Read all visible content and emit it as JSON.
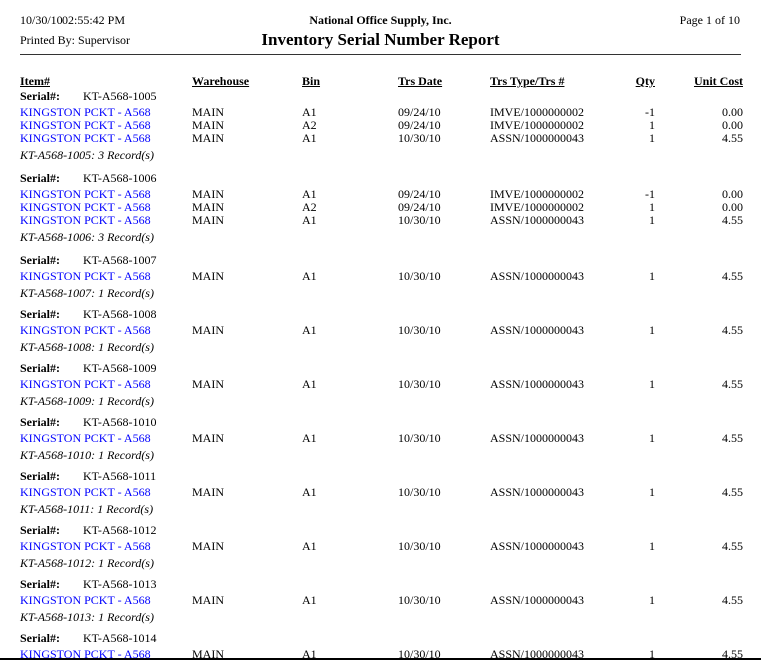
{
  "header": {
    "date": "10/30/10",
    "time": "02:55:42 PM",
    "company": "National Office Supply, Inc.",
    "page": "Page 1 of 10",
    "printed_by_label": "Printed By:",
    "printed_by_value": "Supervisor",
    "title": "Inventory Serial Number Report"
  },
  "columns": [
    "Item#",
    "Warehouse",
    "Bin",
    "Trs Date",
    "Trs Type/Trs #",
    "Qty",
    "Unit Cost"
  ],
  "labels": {
    "serial": "Serial#:"
  },
  "colors": {
    "link_blue": "#0000ff",
    "text": "#000000"
  },
  "groups": [
    {
      "serial": "KT-A568-1005",
      "rows": [
        {
          "item": "KINGSTON PCKT - A568",
          "warehouse": "MAIN",
          "bin": "A1",
          "trs_date": "09/24/10",
          "trs_type": "IMVE/1000000002",
          "qty": "-1",
          "unit_cost": "0.00"
        },
        {
          "item": "KINGSTON PCKT - A568",
          "warehouse": "MAIN",
          "bin": "A2",
          "trs_date": "09/24/10",
          "trs_type": "IMVE/1000000002",
          "qty": "1",
          "unit_cost": "0.00"
        },
        {
          "item": "KINGSTON PCKT - A568",
          "warehouse": "MAIN",
          "bin": "A1",
          "trs_date": "10/30/10",
          "trs_type": "ASSN/1000000043",
          "qty": "1",
          "unit_cost": "4.55"
        }
      ],
      "footer": "KT-A568-1005: 3 Record(s)"
    },
    {
      "serial": "KT-A568-1006",
      "rows": [
        {
          "item": "KINGSTON PCKT - A568",
          "warehouse": "MAIN",
          "bin": "A1",
          "trs_date": "09/24/10",
          "trs_type": "IMVE/1000000002",
          "qty": "-1",
          "unit_cost": "0.00"
        },
        {
          "item": "KINGSTON PCKT - A568",
          "warehouse": "MAIN",
          "bin": "A2",
          "trs_date": "09/24/10",
          "trs_type": "IMVE/1000000002",
          "qty": "1",
          "unit_cost": "0.00"
        },
        {
          "item": "KINGSTON PCKT - A568",
          "warehouse": "MAIN",
          "bin": "A1",
          "trs_date": "10/30/10",
          "trs_type": "ASSN/1000000043",
          "qty": "1",
          "unit_cost": "4.55"
        }
      ],
      "footer": "KT-A568-1006: 3 Record(s)"
    },
    {
      "serial": "KT-A568-1007",
      "rows": [
        {
          "item": "KINGSTON PCKT - A568",
          "warehouse": "MAIN",
          "bin": "A1",
          "trs_date": "10/30/10",
          "trs_type": "ASSN/1000000043",
          "qty": "1",
          "unit_cost": "4.55"
        }
      ],
      "footer": "KT-A568-1007: 1 Record(s)"
    },
    {
      "serial": "KT-A568-1008",
      "rows": [
        {
          "item": "KINGSTON PCKT - A568",
          "warehouse": "MAIN",
          "bin": "A1",
          "trs_date": "10/30/10",
          "trs_type": "ASSN/1000000043",
          "qty": "1",
          "unit_cost": "4.55"
        }
      ],
      "footer": "KT-A568-1008: 1 Record(s)"
    },
    {
      "serial": "KT-A568-1009",
      "rows": [
        {
          "item": "KINGSTON PCKT - A568",
          "warehouse": "MAIN",
          "bin": "A1",
          "trs_date": "10/30/10",
          "trs_type": "ASSN/1000000043",
          "qty": "1",
          "unit_cost": "4.55"
        }
      ],
      "footer": "KT-A568-1009: 1 Record(s)"
    },
    {
      "serial": "KT-A568-1010",
      "rows": [
        {
          "item": "KINGSTON PCKT - A568",
          "warehouse": "MAIN",
          "bin": "A1",
          "trs_date": "10/30/10",
          "trs_type": "ASSN/1000000043",
          "qty": "1",
          "unit_cost": "4.55"
        }
      ],
      "footer": "KT-A568-1010: 1 Record(s)"
    },
    {
      "serial": "KT-A568-1011",
      "rows": [
        {
          "item": "KINGSTON PCKT - A568",
          "warehouse": "MAIN",
          "bin": "A1",
          "trs_date": "10/30/10",
          "trs_type": "ASSN/1000000043",
          "qty": "1",
          "unit_cost": "4.55"
        }
      ],
      "footer": "KT-A568-1011: 1 Record(s)"
    },
    {
      "serial": "KT-A568-1012",
      "rows": [
        {
          "item": "KINGSTON PCKT - A568",
          "warehouse": "MAIN",
          "bin": "A1",
          "trs_date": "10/30/10",
          "trs_type": "ASSN/1000000043",
          "qty": "1",
          "unit_cost": "4.55"
        }
      ],
      "footer": "KT-A568-1012: 1 Record(s)"
    },
    {
      "serial": "KT-A568-1013",
      "rows": [
        {
          "item": "KINGSTON PCKT - A568",
          "warehouse": "MAIN",
          "bin": "A1",
          "trs_date": "10/30/10",
          "trs_type": "ASSN/1000000043",
          "qty": "1",
          "unit_cost": "4.55"
        }
      ],
      "footer": "KT-A568-1013: 1 Record(s)"
    },
    {
      "serial": "KT-A568-1014",
      "rows": [
        {
          "item": "KINGSTON PCKT - A568",
          "warehouse": "MAIN",
          "bin": "A1",
          "trs_date": "10/30/10",
          "trs_type": "ASSN/1000000043",
          "qty": "1",
          "unit_cost": "4.55"
        }
      ],
      "footer": null
    }
  ]
}
